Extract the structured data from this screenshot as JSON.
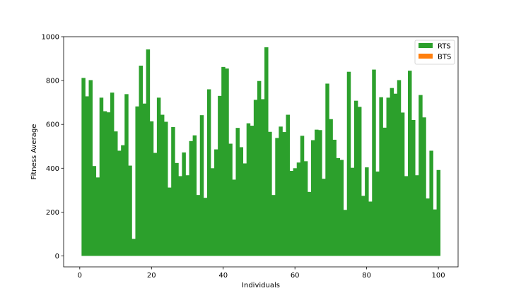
{
  "chart_data": {
    "type": "bar",
    "xlabel": "Individuals",
    "ylabel": "Fitness Average",
    "xlim": [
      -4.5,
      105.5
    ],
    "ylim": [
      -50,
      1000
    ],
    "x_ticks": [
      0,
      20,
      40,
      60,
      80,
      100
    ],
    "y_ticks": [
      0,
      200,
      400,
      600,
      800,
      1000
    ],
    "grid": false,
    "legend_position": "top-right",
    "legend": [
      {
        "label": "RTS",
        "color": "#2ca02c"
      },
      {
        "label": "BTS",
        "color": "#ff7f0e"
      }
    ],
    "series": [
      {
        "name": "RTS",
        "color": "#2ca02c",
        "x": [
          1,
          2,
          3,
          4,
          5,
          6,
          7,
          8,
          9,
          10,
          11,
          12,
          13,
          14,
          15,
          16,
          17,
          18,
          19,
          20,
          21,
          22,
          23,
          24,
          25,
          26,
          27,
          28,
          29,
          30,
          31,
          32,
          33,
          34,
          35,
          36,
          37,
          38,
          39,
          40,
          41,
          42,
          43,
          44,
          45,
          46,
          47,
          48,
          49,
          50,
          51,
          52,
          53,
          54,
          55,
          56,
          57,
          58,
          59,
          60,
          61,
          62,
          63,
          64,
          65,
          66,
          67,
          68,
          69,
          70,
          71,
          72,
          73,
          74,
          75,
          76,
          77,
          78,
          79,
          80,
          81,
          82,
          83,
          84,
          85,
          86,
          87,
          88,
          89,
          90,
          91,
          92,
          93,
          94,
          95,
          96,
          97,
          98,
          99,
          100
        ],
        "values": [
          812,
          728,
          802,
          410,
          358,
          722,
          660,
          655,
          745,
          568,
          480,
          505,
          738,
          412,
          78,
          682,
          868,
          695,
          942,
          614,
          470,
          722,
          644,
          612,
          312,
          588,
          424,
          364,
          472,
          368,
          524,
          550,
          278,
          642,
          265,
          760,
          400,
          486,
          730,
          862,
          855,
          512,
          348,
          584,
          496,
          422,
          605,
          594,
          712,
          798,
          715,
          952,
          566,
          278,
          538,
          590,
          565,
          644,
          388,
          400,
          426,
          548,
          432,
          292,
          528,
          576,
          574,
          352,
          786,
          624,
          530,
          446,
          438,
          210,
          840,
          402,
          708,
          680,
          274,
          404,
          248,
          850,
          385,
          724,
          585,
          722,
          766,
          740,
          802,
          654,
          364,
          845,
          620,
          368,
          734,
          632,
          262,
          480,
          212,
          392
        ]
      },
      {
        "name": "BTS",
        "color": "#ff7f0e",
        "x": [],
        "values": []
      }
    ]
  }
}
